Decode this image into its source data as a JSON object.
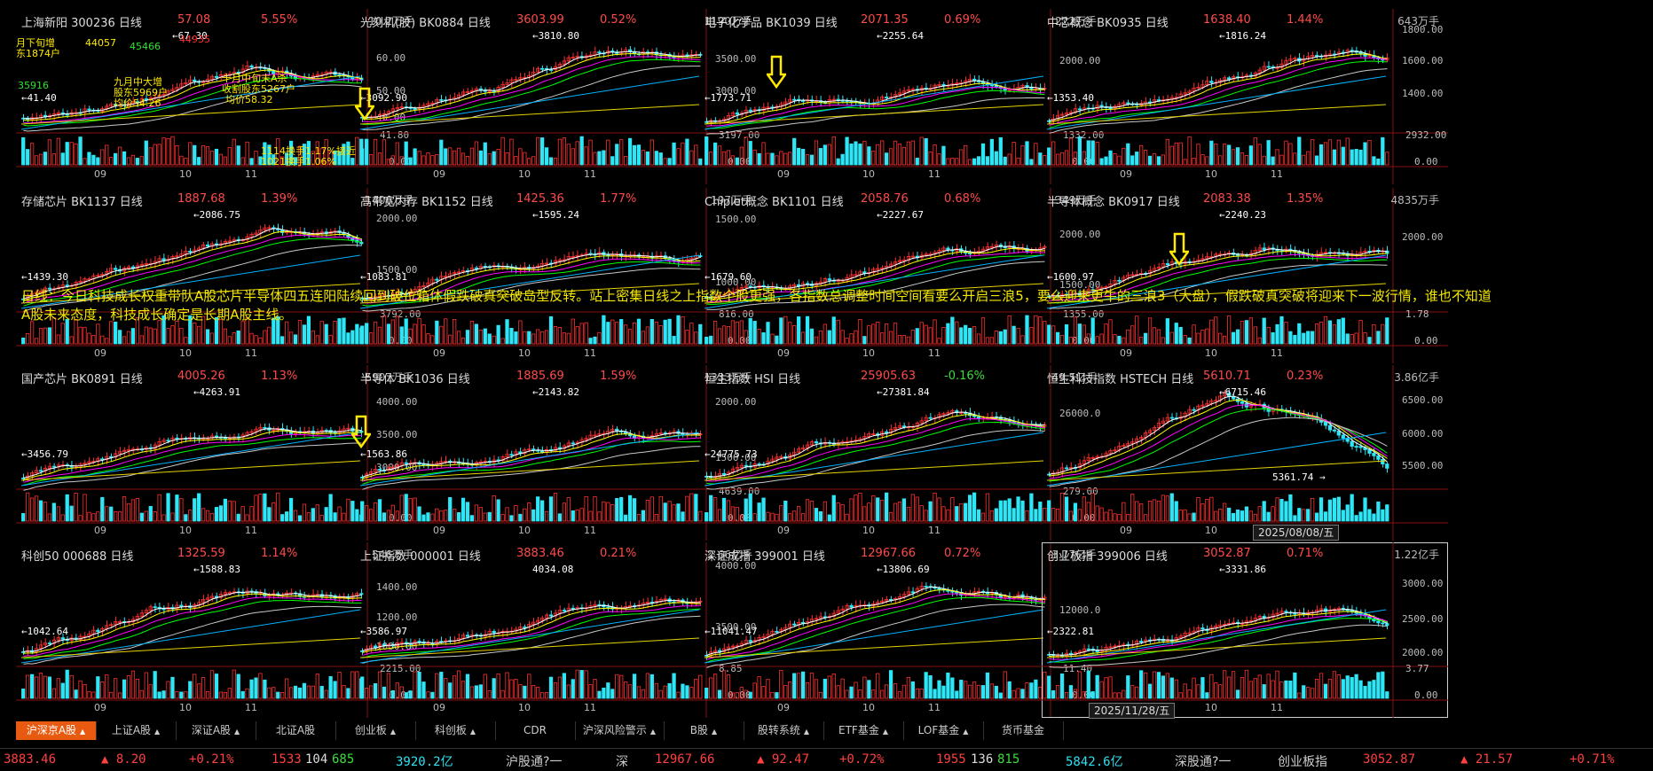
{
  "panels": [
    {
      "name": "上海新阳 300236 日线",
      "price": "57.08",
      "pct": "5.55%",
      "vol": "10.2万手",
      "y_labels": [
        "60.00",
        "50.00",
        "40.00"
      ],
      "vol_labels": [
        "41.80",
        "0.00"
      ],
      "x_labels": [
        "09",
        "10",
        "11"
      ],
      "high_label": "←67.30",
      "low_label": "←41.40",
      "dir": "up"
    },
    {
      "name": "光刻机(胶) BK0884 日线",
      "price": "3603.99",
      "pct": "0.52%",
      "vol": "1190万手",
      "y_labels": [
        "3500.00",
        "3000.00"
      ],
      "vol_labels": [
        "3197.00",
        "0.00"
      ],
      "x_labels": [
        "09",
        "10",
        "11"
      ],
      "high_label": "←3810.80",
      "low_label": "←3092.90",
      "dir": "up"
    },
    {
      "name": "电子化学品 BK1039 日线",
      "price": "2071.35",
      "pct": "0.69%",
      "vol": "222万手",
      "y_labels": [
        "2000.00"
      ],
      "vol_labels": [
        "1332.00",
        "0.00"
      ],
      "x_labels": [
        "09",
        "10",
        "11"
      ],
      "high_label": "←2255.64",
      "low_label": "←1773.71",
      "dir": "up"
    },
    {
      "name": "中芯概念 BK0935 日线",
      "price": "1638.40",
      "pct": "1.44%",
      "vol": "643万手",
      "y_labels": [
        "1800.00",
        "1600.00",
        "1400.00"
      ],
      "vol_labels": [
        "2932.00",
        "0.00"
      ],
      "x_labels": [
        "09",
        "10",
        "11"
      ],
      "high_label": "←1816.24",
      "low_label": "←1353.40",
      "dir": "up"
    },
    {
      "name": "存储芯片 BK1137 日线",
      "price": "1887.68",
      "pct": "1.39%",
      "vol": "1406万手",
      "y_labels": [
        "2000.00",
        "1500.00"
      ],
      "vol_labels": [
        "3792.00",
        "0.00"
      ],
      "x_labels": [
        "09",
        "10",
        "11"
      ],
      "high_label": "←2086.75",
      "low_label": "←1439.30",
      "dir": "up"
    },
    {
      "name": "高带宽内存 BK1152 日线",
      "price": "1425.36",
      "pct": "1.77%",
      "vol": "197万手",
      "y_labels": [
        "1500.00",
        "1000.00"
      ],
      "vol_labels": [
        "816.00",
        "0.00"
      ],
      "x_labels": [
        "09",
        "10",
        "11"
      ],
      "high_label": "←1595.24",
      "low_label": "←1083.81",
      "dir": "up"
    },
    {
      "name": "Chiplet概念 BK1101 日线",
      "price": "2058.76",
      "pct": "0.68%",
      "vol": "349万手",
      "y_labels": [
        "2000.00",
        "1500.00"
      ],
      "vol_labels": [
        "1355.00",
        "0.00"
      ],
      "x_labels": [
        "09",
        "10",
        "11"
      ],
      "high_label": "←2227.67",
      "low_label": "←1679.60",
      "dir": "up"
    },
    {
      "name": "半导体概念 BK0917 日线",
      "price": "2083.38",
      "pct": "1.35%",
      "vol": "4835万手",
      "y_labels": [
        "2000.00"
      ],
      "vol_labels": [
        "1.78",
        "0.00"
      ],
      "x_labels": [
        "09",
        "10",
        "11"
      ],
      "high_label": "←2240.23",
      "low_label": "←1600.97",
      "dir": "up"
    },
    {
      "name": "国产芯片 BK0891 日线",
      "price": "4005.26",
      "pct": "1.13%",
      "vol": "5907万手",
      "y_labels": [
        "4000.00",
        "3500.00",
        "3000.00"
      ],
      "vol_labels": [
        "",
        "0.00"
      ],
      "x_labels": [
        "09",
        "10",
        "11"
      ],
      "high_label": "←4263.91",
      "low_label": "←3456.79",
      "dir": "up"
    },
    {
      "name": "半导体 BK1036 日线",
      "price": "1885.69",
      "pct": "1.59%",
      "vol": "1333万手",
      "y_labels": [
        "2000.00",
        "1500.00"
      ],
      "vol_labels": [
        "4639.00",
        "0.00"
      ],
      "x_labels": [
        "09",
        "10",
        "11"
      ],
      "high_label": "←2143.82",
      "low_label": "←1563.86",
      "dir": "up"
    },
    {
      "name": "恒生指数 HSI 日线",
      "price": "25905.63",
      "pct": "-0.16%",
      "vol": "49.5亿手",
      "y_labels": [
        "26000.0"
      ],
      "vol_labels": [
        "279.00",
        "0.00"
      ],
      "x_labels": [
        "09",
        "10",
        "11"
      ],
      "high_label": "←27381.84",
      "low_label": "←24775.73",
      "dir": "down"
    },
    {
      "name": "恒生科技指数 HSTECH 日线",
      "price": "5610.71",
      "pct": "0.23%",
      "vol": "3.86亿手",
      "y_labels": [
        "6500.00",
        "6000.00",
        "5500.00"
      ],
      "vol_labels": [
        "",
        ""
      ],
      "x_labels": [
        "09",
        "10",
        "11"
      ],
      "high_label": "←6715.46",
      "low_label": "5361.74 →",
      "dir": "up"
    },
    {
      "name": "科创50 000688 日线",
      "price": "1325.59",
      "pct": "1.14%",
      "vol": "546万手",
      "y_labels": [
        "1400.00",
        "1200.00",
        "1000.00"
      ],
      "vol_labels": [
        "2215.00",
        "0.00"
      ],
      "x_labels": [
        "09",
        "10",
        "11"
      ],
      "high_label": "←1588.83",
      "low_label": "←1042.64",
      "dir": "up"
    },
    {
      "name": "上证指数 000001 日线",
      "price": "3883.46",
      "pct": "0.21%",
      "vol": "2.66亿手",
      "y_labels": [
        "4000.00",
        "3500.00"
      ],
      "vol_labels": [
        "8.85",
        "0.00"
      ],
      "x_labels": [
        "09",
        "10",
        "11"
      ],
      "high_label": "4034.08",
      "low_label": "←3586.97",
      "dir": "up"
    },
    {
      "name": "深证成指 399001 日线",
      "price": "12967.66",
      "pct": "0.72%",
      "vol": "3.77亿手",
      "y_labels": [
        "12000.0"
      ],
      "vol_labels": [
        "11.40",
        "0.00"
      ],
      "x_labels": [
        "09",
        "10",
        "11"
      ],
      "high_label": "←13806.69",
      "low_label": "←11041.47",
      "dir": "up"
    },
    {
      "name": "创业板指 399006 日线",
      "price": "3052.87",
      "pct": "0.71%",
      "vol": "1.22亿手",
      "y_labels": [
        "3000.00",
        "2500.00",
        "2000.00"
      ],
      "vol_labels": [
        "3.77",
        "0.00"
      ],
      "x_labels": [
        "09",
        "10",
        "11"
      ],
      "high_label": "←3331.86",
      "low_label": "←2322.81",
      "dir": "up"
    }
  ],
  "panel0_annotations": [
    "月下旬增",
    "东1874户",
    "44057",
    "45466",
    "44935",
    "35916",
    "九月中大增",
    "股东5969户",
    "均价54.26",
    "十月中旬末A杀",
    "收割股东5267户",
    "均价58.32",
    "1114换手1.17%接近",
    "1021换手1.06%"
  ],
  "note_lines": [
    "日线：今日科技成长权重带队A股芯片半导体四五连阳陆续回到破位箱体假跌破真突破岛型反转。站上密集日线之上指数个股更强，各指数总调整时间空间看要么开启三浪5，要么迎来更牛的三浪3（大盘），假跌破真突破将迎来下一波行情，谁也不知道",
    "A股未来态度，科技成长确定是长期A股主线。"
  ],
  "crosshair_dates": {
    "top": "2025/08/08/五",
    "bottom": "2025/11/28/五"
  },
  "tabs": [
    {
      "label": "沪深京A股",
      "caret": true,
      "active": true
    },
    {
      "label": "上证A股",
      "caret": true
    },
    {
      "label": "深证A股",
      "caret": true
    },
    {
      "label": "北证A股",
      "caret": false
    },
    {
      "label": "创业板",
      "caret": true
    },
    {
      "label": "科创板",
      "caret": true
    },
    {
      "label": "CDR",
      "caret": false
    },
    {
      "label": "沪深风险警示",
      "caret": true
    },
    {
      "label": "B股",
      "caret": true
    },
    {
      "label": "股转系统",
      "caret": true
    },
    {
      "label": "ETF基金",
      "caret": true
    },
    {
      "label": "LOF基金",
      "caret": true
    },
    {
      "label": "货币基金",
      "caret": false
    }
  ],
  "status": {
    "sh_price": "3883.46",
    "sh_change": "▲ 8.20",
    "sh_pct": "+0.21%",
    "sh_up": "1533",
    "sh_flat": "104",
    "sh_down": "685",
    "sh_amount": "3920.2亿",
    "hgt_label": "沪股通",
    "hgt_value": "?一",
    "sz_label": "深",
    "sz_price": "12967.66",
    "sz_change": "▲ 92.47",
    "sz_pct": "+0.72%",
    "sz_up": "1955",
    "sz_flat": "136",
    "sz_down": "815",
    "sz_amount": "5842.6亿",
    "sgt_label": "深股通",
    "sgt_value": "?一",
    "cyb_label": "创业板指",
    "cyb_price": "3052.87",
    "cyb_change": "▲ 21.57",
    "cyb_pct": "+0.71%"
  },
  "colors": {
    "up": "#ff3030",
    "down": "#2ee6f6",
    "ma5": "#ffffff",
    "ma10": "#ffff00",
    "ma20": "#ff00ff",
    "ma30": "#00ff00",
    "ma60": "#c8c8c8",
    "ma120": "#00b4ff",
    "ma250": "#e6d200",
    "arrow": "#ffea00",
    "tab_active": "#e85a10"
  }
}
